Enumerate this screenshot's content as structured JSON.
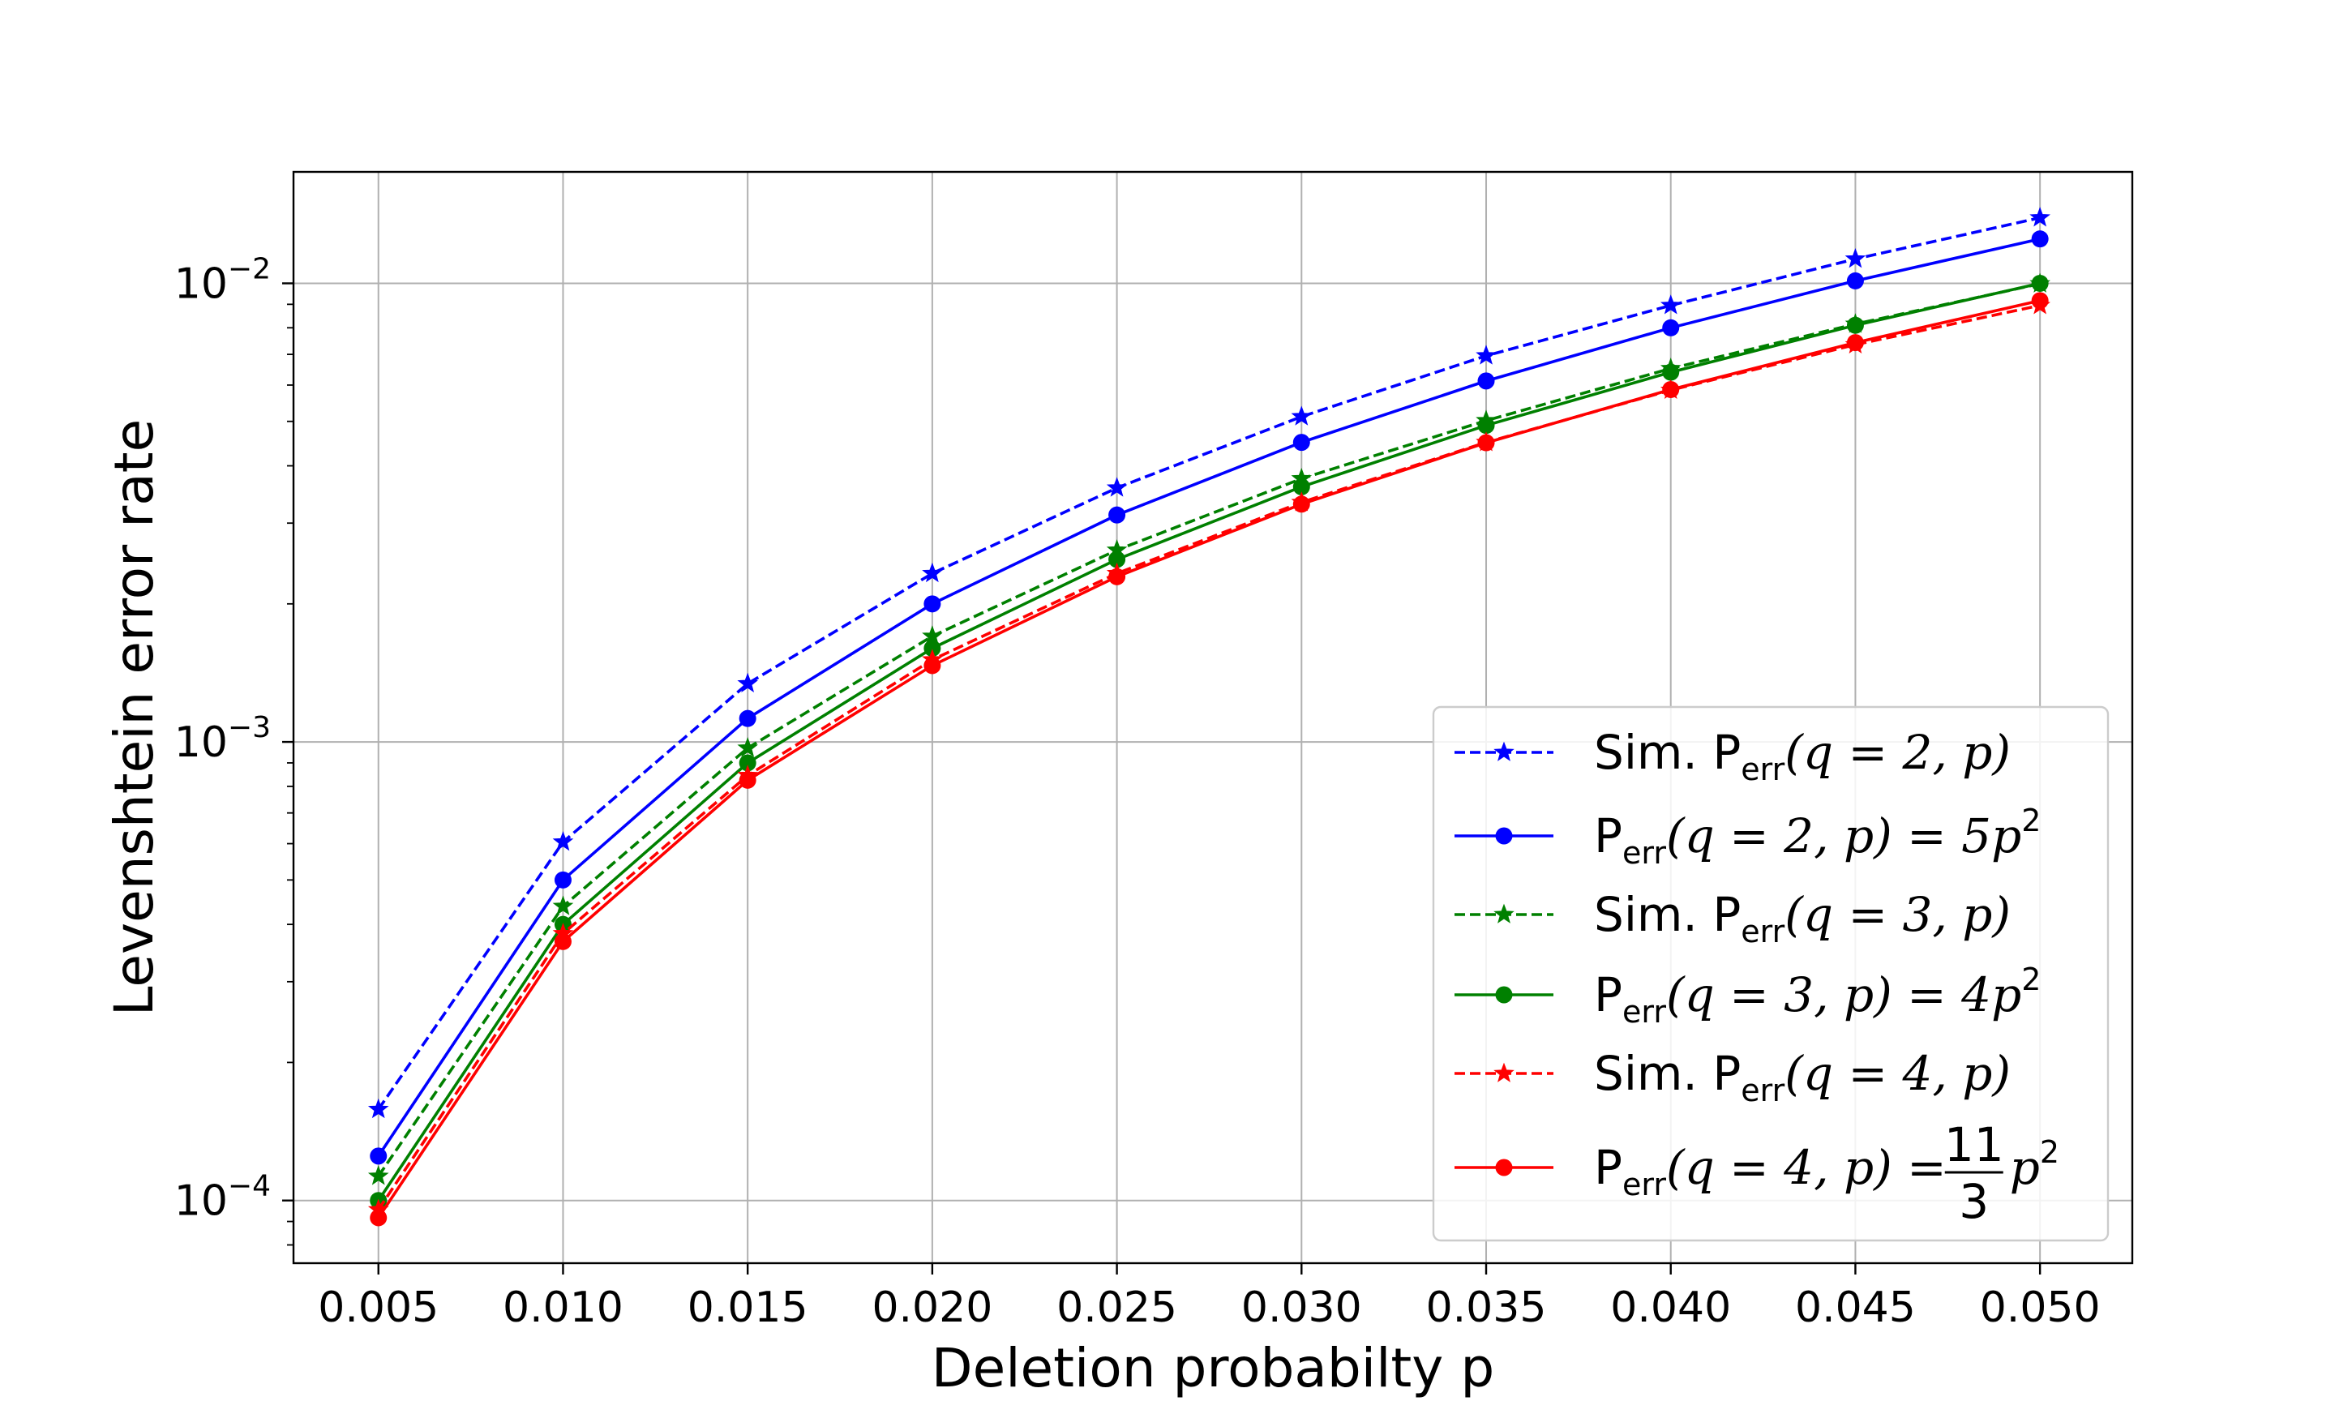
{
  "chart_data": {
    "type": "line",
    "xlabel": "Deletion probabilty p",
    "ylabel": "Levenshtein error rate",
    "yscale": "log",
    "xlim": [
      0.0027,
      0.0525
    ],
    "ylim": [
      7.3e-05,
      0.0175
    ],
    "grid": true,
    "legend_position": "lower-right",
    "x": [
      0.005,
      0.01,
      0.015,
      0.02,
      0.025,
      0.03,
      0.035,
      0.04,
      0.045,
      0.05
    ],
    "x_tick_labels": [
      "0.005",
      "0.010",
      "0.015",
      "0.020",
      "0.025",
      "0.030",
      "0.035",
      "0.040",
      "0.045",
      "0.050"
    ],
    "y_ticks": [
      {
        "value": 0.0001,
        "base": "10",
        "exp": "−4"
      },
      {
        "value": 0.001,
        "base": "10",
        "exp": "−3"
      },
      {
        "value": 0.01,
        "base": "10",
        "exp": "−2"
      }
    ],
    "series": [
      {
        "legend": {
          "prefix": "Sim. ",
          "pe": "P",
          "sub": "err",
          "mid": "(q = 2, p)",
          "suffix": ""
        },
        "color": "#0000ff",
        "dash": true,
        "marker": "star",
        "values": [
          0.000158,
          0.000605,
          0.00134,
          0.00233,
          0.00358,
          0.00512,
          0.00695,
          0.00895,
          0.0113,
          0.0139
        ]
      },
      {
        "legend": {
          "prefix": "",
          "pe": "P",
          "sub": "err",
          "mid": "(q = 2, p) = 5p",
          "suffix": "2"
        },
        "color": "#0000ff",
        "dash": false,
        "marker": "circle",
        "values": [
          0.000125,
          0.0005,
          0.001125,
          0.002,
          0.003125,
          0.0045,
          0.006125,
          0.008,
          0.010125,
          0.0125
        ]
      },
      {
        "legend": {
          "prefix": "Sim. ",
          "pe": "P",
          "sub": "err",
          "mid": "(q = 3, p)",
          "suffix": ""
        },
        "color": "#008000",
        "dash": true,
        "marker": "star",
        "values": [
          0.000113,
          0.000438,
          0.00097,
          0.0017,
          0.00262,
          0.00375,
          0.00502,
          0.00652,
          0.00815,
          0.00998
        ]
      },
      {
        "legend": {
          "prefix": "",
          "pe": "P",
          "sub": "err",
          "mid": "(q = 3, p) = 4p",
          "suffix": "2"
        },
        "color": "#008000",
        "dash": false,
        "marker": "circle",
        "values": [
          0.0001,
          0.0004,
          0.0009,
          0.0016,
          0.0025,
          0.0036,
          0.0049,
          0.0064,
          0.0081,
          0.01
        ]
      },
      {
        "legend": {
          "prefix": "Sim. ",
          "pe": "P",
          "sub": "err",
          "mid": "(q = 4, p)",
          "suffix": ""
        },
        "color": "#ff0000",
        "dash": true,
        "marker": "star",
        "values": [
          9.55e-05,
          0.000382,
          0.000845,
          0.00151,
          0.00233,
          0.00333,
          0.0045,
          0.00585,
          0.00735,
          0.00895
        ]
      },
      {
        "legend": {
          "prefix": "",
          "pe": "P",
          "sub": "err",
          "mid": "(q = 4, p) = ",
          "frac_num": "11",
          "frac_den": "3",
          "tail": "p",
          "suffix": "2"
        },
        "color": "#ff0000",
        "dash": false,
        "marker": "circle",
        "values": [
          9.17e-05,
          0.000367,
          0.000825,
          0.001467,
          0.002292,
          0.0033,
          0.004492,
          0.005867,
          0.007425,
          0.009167
        ]
      }
    ]
  }
}
